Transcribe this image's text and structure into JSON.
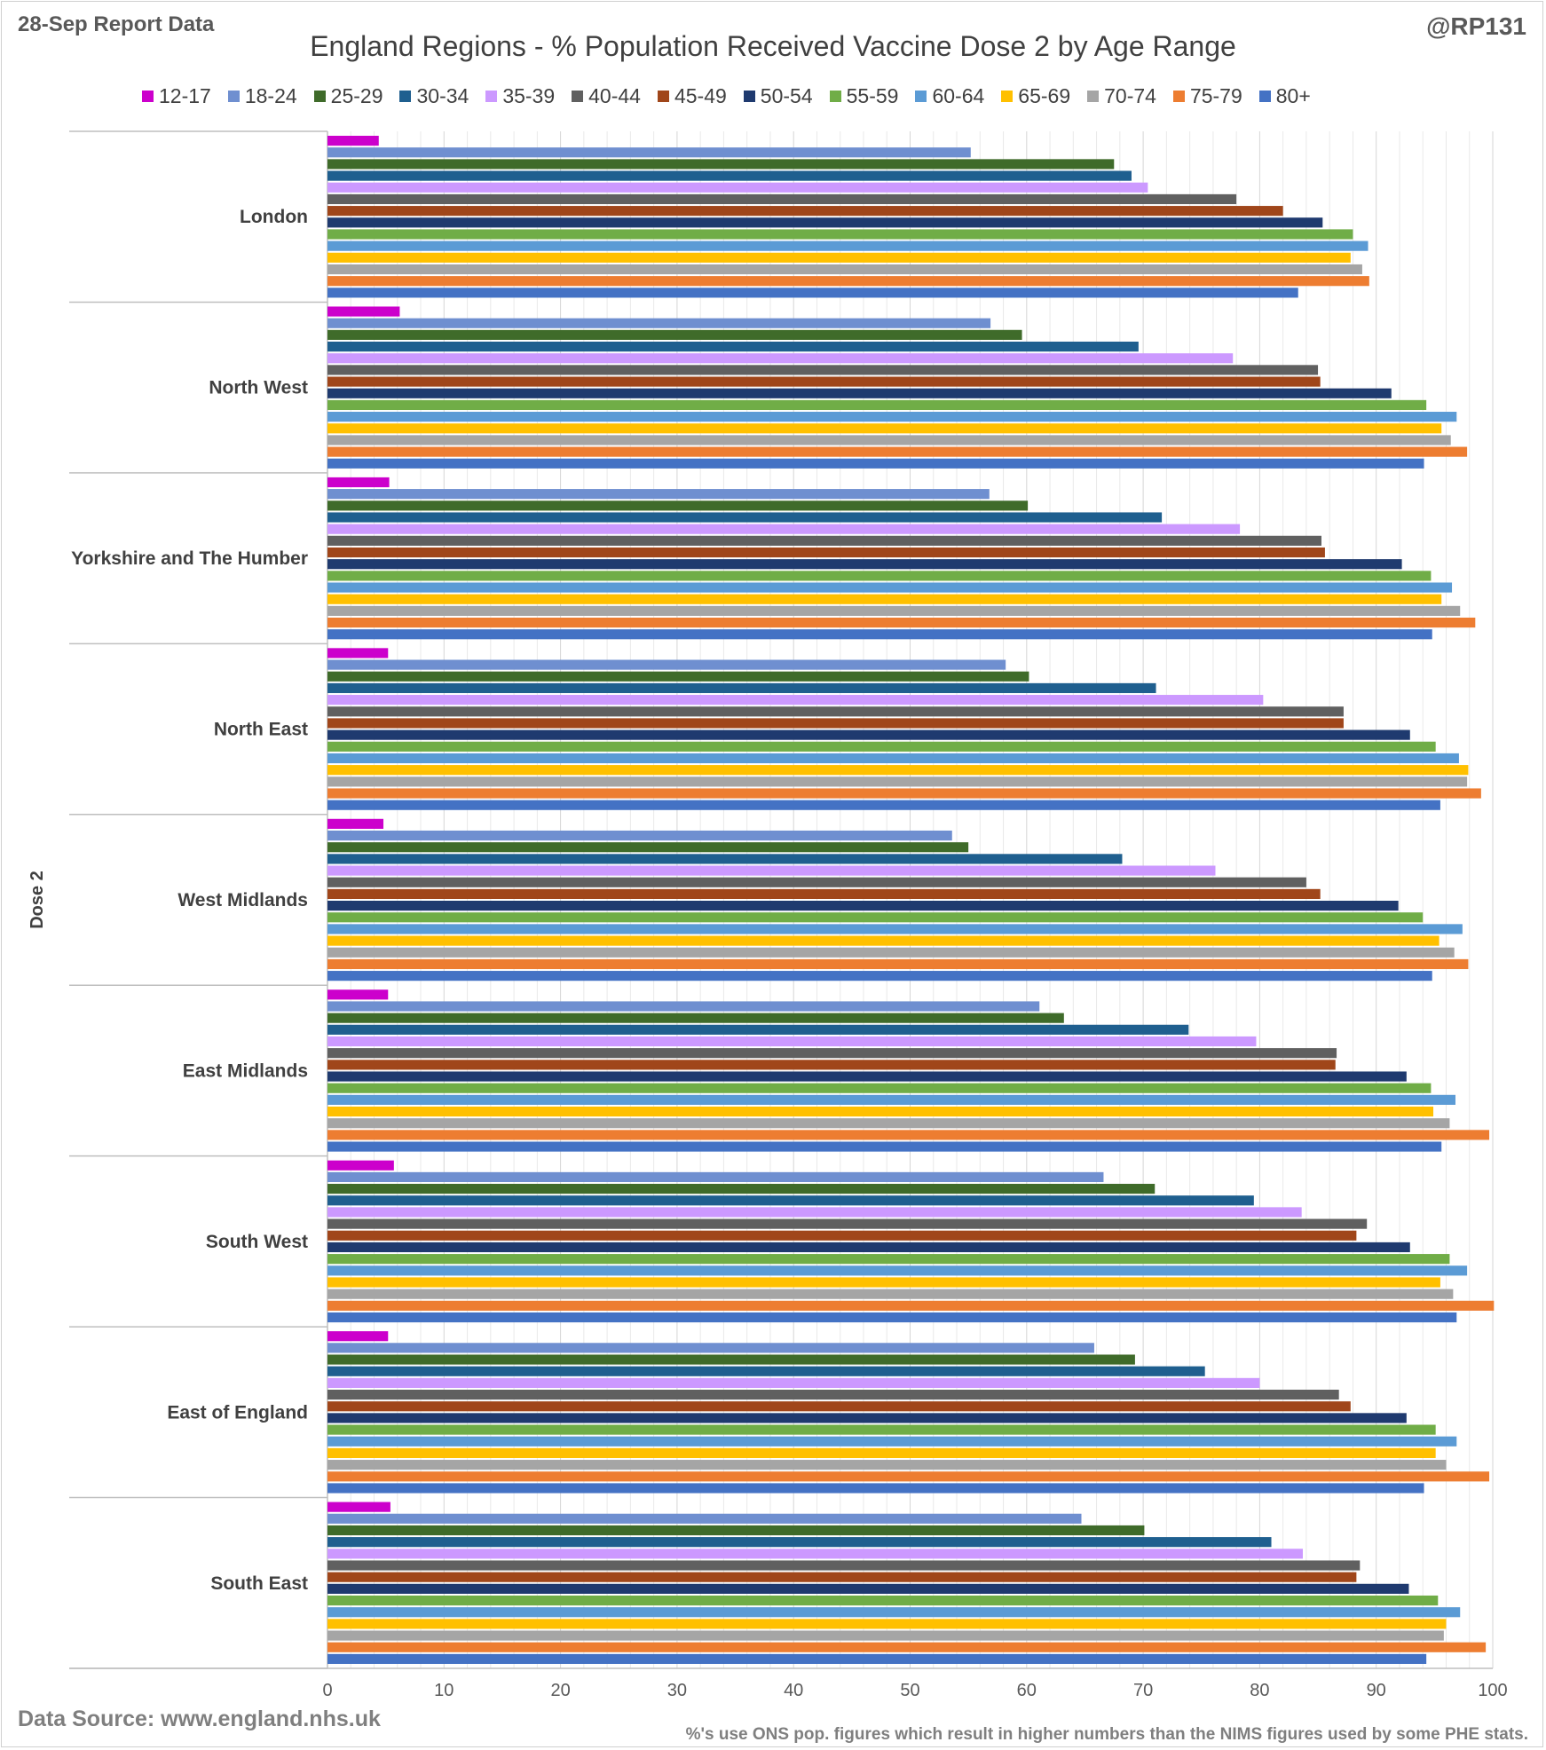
{
  "header": {
    "report_label": "28-Sep Report Data",
    "handle": "@RP131"
  },
  "footer": {
    "source": "Data Source: www.england.nhs.uk",
    "note": "%'s use ONS pop. figures which result in higher numbers than the NIMS figures used by some PHE stats."
  },
  "chart_data": {
    "type": "bar",
    "orientation": "horizontal",
    "title": "England Regions - % Population Received Vaccine Dose 2 by Age Range",
    "ylabel": "Dose 2",
    "xlabel": "",
    "xlim": [
      0,
      100
    ],
    "x_ticks": [
      0,
      10,
      20,
      30,
      40,
      50,
      60,
      70,
      80,
      90,
      100
    ],
    "grid": true,
    "legend_position": "top",
    "categories": [
      "London",
      "North West",
      "Yorkshire and The Humber",
      "North East",
      "West Midlands",
      "East Midlands",
      "South West",
      "East of England",
      "South East"
    ],
    "series": [
      {
        "name": "12-17",
        "color": "#cc00cc",
        "values": [
          4.4,
          6.2,
          5.3,
          5.2,
          4.8,
          5.2,
          5.7,
          5.2,
          5.4
        ]
      },
      {
        "name": "18-24",
        "color": "#6f8fd0",
        "values": [
          55.2,
          56.9,
          56.8,
          58.2,
          53.6,
          61.1,
          66.6,
          65.8,
          64.7
        ]
      },
      {
        "name": "25-29",
        "color": "#3f6b2a",
        "values": [
          67.5,
          59.6,
          60.1,
          60.2,
          55.0,
          63.2,
          71.0,
          69.3,
          70.1
        ]
      },
      {
        "name": "30-34",
        "color": "#1f5f8f",
        "values": [
          69.0,
          69.6,
          71.6,
          71.1,
          68.2,
          73.9,
          79.5,
          75.3,
          81.0
        ]
      },
      {
        "name": "35-39",
        "color": "#cc99ff",
        "values": [
          70.4,
          77.7,
          78.3,
          80.3,
          76.2,
          79.7,
          83.6,
          80.0,
          83.7
        ]
      },
      {
        "name": "40-44",
        "color": "#606060",
        "values": [
          78.0,
          85.0,
          85.3,
          87.2,
          84.0,
          86.6,
          89.2,
          86.8,
          88.6
        ]
      },
      {
        "name": "45-49",
        "color": "#a0461a",
        "values": [
          82.0,
          85.2,
          85.6,
          87.2,
          85.2,
          86.5,
          88.3,
          87.8,
          88.3
        ]
      },
      {
        "name": "50-54",
        "color": "#1f3a6f",
        "values": [
          85.4,
          91.3,
          92.2,
          92.9,
          91.9,
          92.6,
          92.9,
          92.6,
          92.8
        ]
      },
      {
        "name": "55-59",
        "color": "#70ad47",
        "values": [
          88.0,
          94.3,
          94.7,
          95.1,
          94.0,
          94.7,
          96.3,
          95.1,
          95.3
        ]
      },
      {
        "name": "60-64",
        "color": "#5b9bd5",
        "values": [
          89.3,
          96.9,
          96.5,
          97.1,
          97.4,
          96.8,
          97.8,
          96.9,
          97.2
        ]
      },
      {
        "name": "65-69",
        "color": "#ffc000",
        "values": [
          87.8,
          95.6,
          95.6,
          97.9,
          95.4,
          94.9,
          95.5,
          95.1,
          96.0
        ]
      },
      {
        "name": "70-74",
        "color": "#a5a5a5",
        "values": [
          88.8,
          96.4,
          97.2,
          97.8,
          96.7,
          96.3,
          96.6,
          96.0,
          95.8
        ]
      },
      {
        "name": "75-79",
        "color": "#ed7d31",
        "values": [
          89.4,
          97.8,
          98.5,
          99.0,
          97.9,
          99.7,
          100.1,
          99.7,
          99.4
        ]
      },
      {
        "name": "80+",
        "color": "#4472c4",
        "values": [
          83.3,
          94.1,
          94.8,
          95.5,
          94.8,
          95.6,
          96.9,
          94.1,
          94.3
        ]
      }
    ]
  }
}
